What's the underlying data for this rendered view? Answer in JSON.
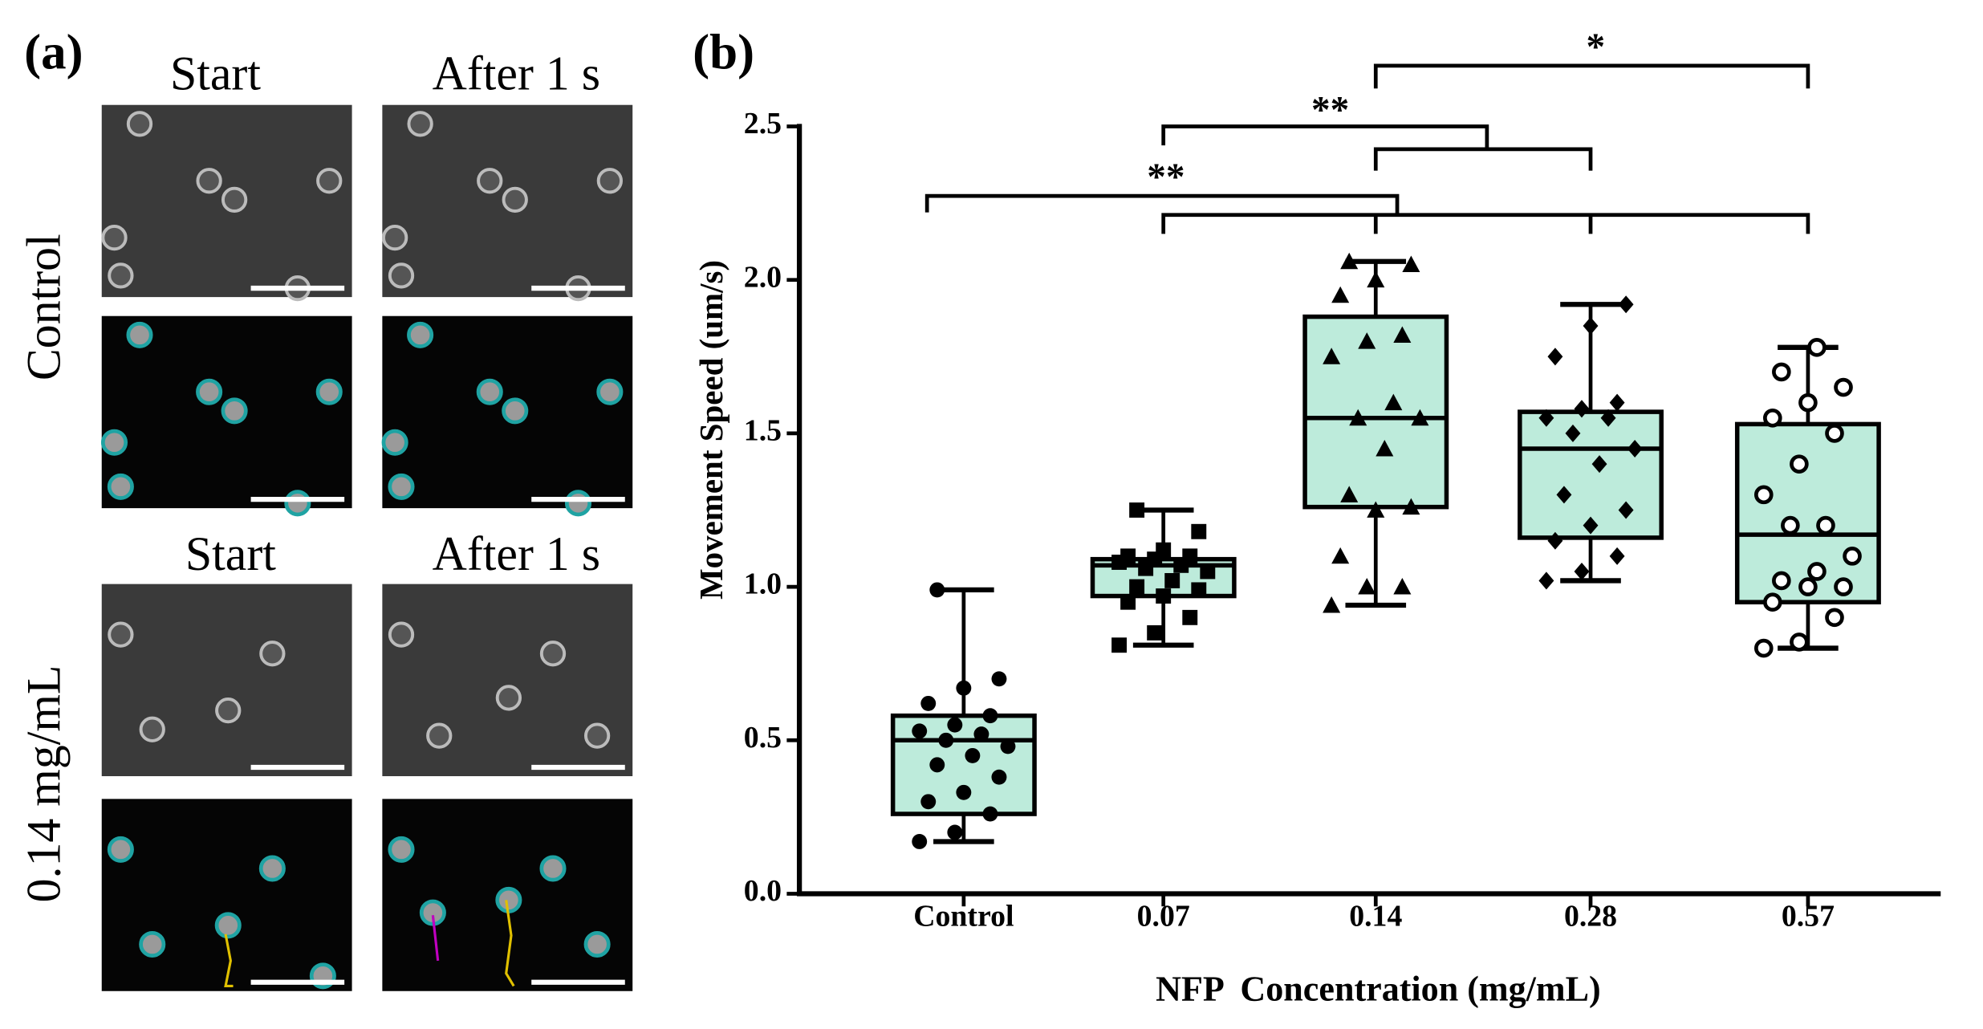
{
  "panels": {
    "label_a": "(a)",
    "label_b": "(b)",
    "column_titles": [
      "Start",
      "After 1 s",
      "Start",
      "After 1 s"
    ],
    "row_labels": [
      "Control",
      "0.14 mg/mL"
    ]
  },
  "chart_data": {
    "type": "box",
    "y_label": "Movement Speed (um/s)",
    "x_label": "NFP  Concentration (mg/mL)",
    "categories": [
      "Control",
      "0.07",
      "0.14",
      "0.28",
      "0.57"
    ],
    "color": "#bdebdb",
    "markers": [
      "circle",
      "square",
      "triangle",
      "diamond",
      "open-circle"
    ],
    "boxes": [
      {
        "min": 0.17,
        "q1": 0.26,
        "median": 0.5,
        "q3": 0.58,
        "max": 0.99
      },
      {
        "min": 0.81,
        "q1": 0.97,
        "median": 1.07,
        "q3": 1.09,
        "max": 1.25
      },
      {
        "min": 0.94,
        "q1": 1.26,
        "median": 1.55,
        "q3": 1.88,
        "max": 2.06
      },
      {
        "min": 1.02,
        "q1": 1.16,
        "median": 1.45,
        "q3": 1.57,
        "max": 1.92
      },
      {
        "min": 0.8,
        "q1": 0.95,
        "median": 1.17,
        "q3": 1.53,
        "max": 1.78
      }
    ],
    "points": [
      [
        0.17,
        0.2,
        0.26,
        0.3,
        0.33,
        0.38,
        0.42,
        0.45,
        0.48,
        0.5,
        0.52,
        0.53,
        0.55,
        0.58,
        0.62,
        0.67,
        0.7,
        0.99
      ],
      [
        0.81,
        0.85,
        0.9,
        0.95,
        0.97,
        0.99,
        1.0,
        1.02,
        1.05,
        1.06,
        1.07,
        1.08,
        1.09,
        1.1,
        1.1,
        1.12,
        1.18,
        1.25
      ],
      [
        0.94,
        1.0,
        1.0,
        1.1,
        1.25,
        1.26,
        1.3,
        1.45,
        1.55,
        1.55,
        1.6,
        1.75,
        1.8,
        1.82,
        1.95,
        2.0,
        2.05,
        2.06
      ],
      [
        1.02,
        1.05,
        1.1,
        1.15,
        1.2,
        1.25,
        1.3,
        1.4,
        1.45,
        1.5,
        1.55,
        1.55,
        1.58,
        1.6,
        1.75,
        1.85,
        1.92
      ],
      [
        0.8,
        0.82,
        0.9,
        0.95,
        1.0,
        1.0,
        1.02,
        1.05,
        1.1,
        1.2,
        1.2,
        1.3,
        1.4,
        1.5,
        1.55,
        1.6,
        1.65,
        1.7,
        1.78
      ]
    ],
    "ylim": [
      0,
      2.5
    ],
    "yticks": [
      {
        "value": 0,
        "label": "0.0"
      },
      0.5,
      {
        "value": 1,
        "label": "1.0"
      },
      1.5,
      {
        "value": 2,
        "label": "2.0"
      },
      2.5
    ],
    "annotations": [
      "*",
      "**",
      "**"
    ]
  }
}
